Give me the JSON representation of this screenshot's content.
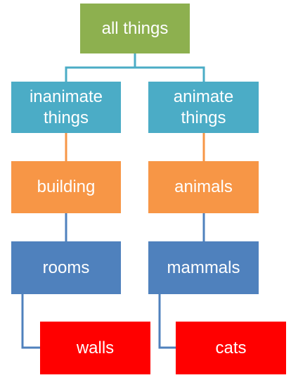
{
  "colors": {
    "root": "#8db04f",
    "level1": "#4bacc6",
    "level2": "#f79646",
    "level3": "#4f81bd",
    "level4": "#ff0000",
    "connector_level1": "#4bacc6",
    "connector_level2": "#f79646",
    "connector_level3": "#4f81bd",
    "connector_level4": "#4f81bd"
  },
  "nodes": {
    "root": "all things",
    "inanimate": "inanimate\nthings",
    "animate": "animate\nthings",
    "building": "building",
    "animals": "animals",
    "rooms": "rooms",
    "mammals": "mammals",
    "walls": "walls",
    "cats": "cats"
  }
}
